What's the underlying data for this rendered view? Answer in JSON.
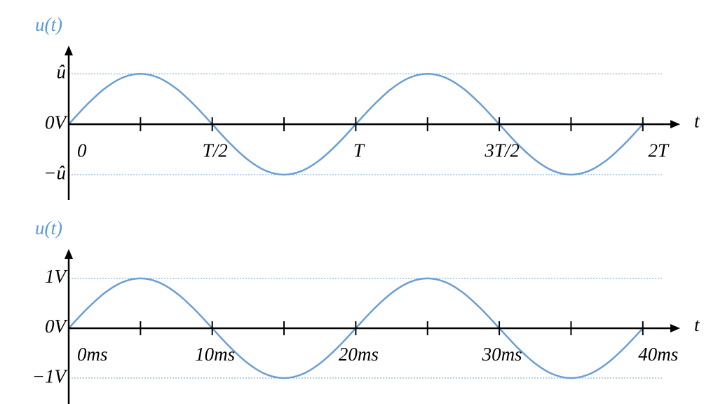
{
  "chart_data": [
    {
      "type": "line",
      "y_label": "u(t)",
      "x_label": "t",
      "color": "#6a9fd4",
      "grid": true,
      "x": [
        0,
        0.0625,
        0.125,
        0.1875,
        0.25,
        0.3125,
        0.375,
        0.4375,
        0.5,
        0.5625,
        0.625,
        0.6875,
        0.75,
        0.8125,
        0.875,
        0.9375,
        1,
        1.0625,
        1.125,
        1.1875,
        1.25,
        1.3125,
        1.375,
        1.4375,
        1.5,
        1.5625,
        1.625,
        1.6875,
        1.75,
        1.8125,
        1.875,
        1.9375,
        2
      ],
      "values": [
        0,
        0.383,
        0.707,
        0.924,
        1,
        0.924,
        0.707,
        0.383,
        0,
        -0.383,
        -0.707,
        -0.924,
        -1,
        -0.924,
        -0.707,
        -0.383,
        0,
        0.383,
        0.707,
        0.924,
        1,
        0.924,
        0.707,
        0.383,
        0,
        -0.383,
        -0.707,
        -0.924,
        -1,
        -0.924,
        -0.707,
        -0.383,
        0
      ],
      "xlim": [
        0,
        2.13
      ],
      "ylim": [
        -1.5,
        1.56
      ],
      "xticks": [
        {
          "value": 0,
          "label": "0"
        },
        {
          "value": 0.5,
          "label": "T/2"
        },
        {
          "value": 1,
          "label": "T"
        },
        {
          "value": 1.5,
          "label": "3T/2"
        },
        {
          "value": 2,
          "label": "2T"
        }
      ],
      "xticks_minor": [
        0.25,
        0.75,
        1.25,
        1.75
      ],
      "yticks": [
        {
          "value": 1,
          "label": "û"
        },
        {
          "value": 0,
          "label": "0V"
        },
        {
          "value": -1,
          "label": "−û"
        }
      ]
    },
    {
      "type": "line",
      "y_label": "u(t)",
      "x_label": "t",
      "color": "#6a9fd4",
      "grid": true,
      "x": [
        0,
        1.25,
        2.5,
        3.75,
        5,
        6.25,
        7.5,
        8.75,
        10,
        11.25,
        12.5,
        13.75,
        15,
        16.25,
        17.5,
        18.75,
        20,
        21.25,
        22.5,
        23.75,
        25,
        26.25,
        27.5,
        28.75,
        30,
        31.25,
        32.5,
        33.75,
        35,
        36.25,
        37.5,
        38.75,
        40
      ],
      "values": [
        0,
        0.383,
        0.707,
        0.924,
        1,
        0.924,
        0.707,
        0.383,
        0,
        -0.383,
        -0.707,
        -0.924,
        -1,
        -0.924,
        -0.707,
        -0.383,
        0,
        0.383,
        0.707,
        0.924,
        1,
        0.924,
        0.707,
        0.383,
        0,
        -0.383,
        -0.707,
        -0.924,
        -1,
        -0.924,
        -0.707,
        -0.383,
        0
      ],
      "xlim": [
        0,
        42.6
      ],
      "ylim": [
        -1.52,
        1.59
      ],
      "xticks": [
        {
          "value": 0,
          "label": "0ms"
        },
        {
          "value": 10,
          "label": "10ms"
        },
        {
          "value": 20,
          "label": "20ms"
        },
        {
          "value": 30,
          "label": "30ms"
        },
        {
          "value": 40,
          "label": "40ms"
        }
      ],
      "xticks_minor": [
        5,
        15,
        25,
        35
      ],
      "yticks": [
        {
          "value": 1,
          "label": "1V"
        },
        {
          "value": 0,
          "label": "0V"
        },
        {
          "value": -1,
          "label": "−1V"
        }
      ]
    }
  ]
}
